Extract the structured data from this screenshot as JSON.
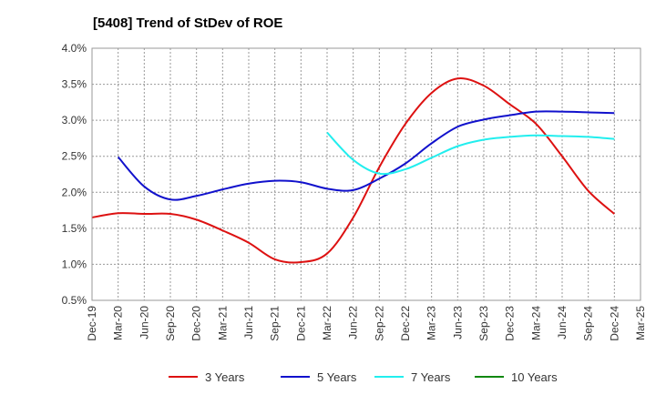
{
  "chart_data": {
    "type": "line",
    "title": "[5408]  Trend of StDev of ROE",
    "xlabel": "",
    "ylabel": "",
    "categories": [
      "Dec-19",
      "Mar-20",
      "Jun-20",
      "Sep-20",
      "Dec-20",
      "Mar-21",
      "Jun-21",
      "Sep-21",
      "Dec-21",
      "Mar-22",
      "Jun-22",
      "Sep-22",
      "Dec-22",
      "Mar-23",
      "Jun-23",
      "Sep-23",
      "Dec-23",
      "Mar-24",
      "Jun-24",
      "Sep-24",
      "Dec-24",
      "Mar-25"
    ],
    "ylim": [
      0.5,
      4.0
    ],
    "yticks": [
      "0.5%",
      "1.0%",
      "1.5%",
      "2.0%",
      "2.5%",
      "3.0%",
      "3.5%",
      "4.0%"
    ],
    "ytick_values": [
      0.5,
      1.0,
      1.5,
      2.0,
      2.5,
      3.0,
      3.5,
      4.0
    ],
    "grid": true,
    "legend_position": "bottom",
    "series": [
      {
        "name": "3 Years",
        "color": "#dd1111",
        "values": [
          1.65,
          1.71,
          1.7,
          1.7,
          1.62,
          1.47,
          1.3,
          1.07,
          1.03,
          1.15,
          1.65,
          2.35,
          2.95,
          3.38,
          3.58,
          3.48,
          3.22,
          2.95,
          2.5,
          2.02,
          1.7,
          null
        ]
      },
      {
        "name": "5 Years",
        "color": "#1111cc",
        "values": [
          null,
          2.49,
          2.08,
          1.9,
          1.95,
          2.04,
          2.12,
          2.16,
          2.14,
          2.05,
          2.03,
          2.19,
          2.4,
          2.68,
          2.91,
          3.01,
          3.07,
          3.12,
          3.12,
          3.11,
          3.1,
          null
        ]
      },
      {
        "name": "7 Years",
        "color": "#22eeee",
        "values": [
          null,
          null,
          null,
          null,
          null,
          null,
          null,
          null,
          null,
          2.83,
          2.45,
          2.26,
          2.32,
          2.48,
          2.64,
          2.73,
          2.77,
          2.79,
          2.78,
          2.77,
          2.74,
          null
        ]
      },
      {
        "name": "10 Years",
        "color": "#118811",
        "values": [
          null,
          null,
          null,
          null,
          null,
          null,
          null,
          null,
          null,
          null,
          null,
          null,
          null,
          null,
          null,
          null,
          null,
          null,
          null,
          null,
          null,
          null
        ]
      }
    ]
  }
}
